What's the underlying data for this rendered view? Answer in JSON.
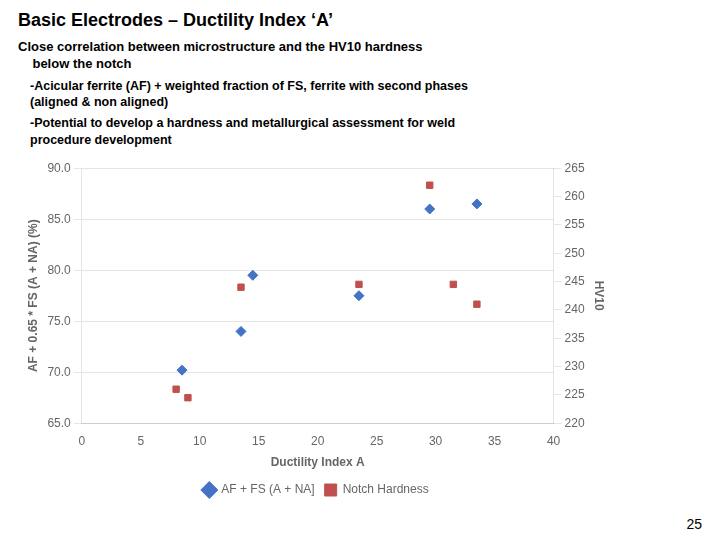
{
  "chart_data": {
    "type": "scatter",
    "title": "Basic Electrodes – Ductility Index ‘A’",
    "subtitle": [
      "Close correlation between microstructure and the HV10 hardness",
      "    below the notch"
    ],
    "annotations": [
      "-Acicular ferrite (AF) + weighted fraction of FS, ferrite with second phases\n(aligned & non aligned)",
      "-Potential to develop a hardness and metallurgical assessment for weld\nprocedure development",
      "25"
    ],
    "xlabel": "Ductility Index A",
    "ylabel": "AF + 0.65 * FS (A + NA) (%)",
    "y2label": "HV10",
    "xlim": [
      0,
      40
    ],
    "xticks": [
      0,
      5,
      10,
      15,
      20,
      25,
      30,
      35,
      40
    ],
    "ylim": [
      65.0,
      90.0
    ],
    "yticks": [
      {
        "value": 65.0,
        "label": "65.0"
      },
      {
        "value": 70.0,
        "label": "70.0"
      },
      {
        "value": 75.0,
        "label": "75.0"
      },
      {
        "value": 80.0,
        "label": "80.0"
      },
      {
        "value": 85.0,
        "label": "85.0"
      },
      {
        "value": 90.0,
        "label": "90.0"
      }
    ],
    "y2lim": [
      220,
      265
    ],
    "y2ticks": [
      220,
      225,
      230,
      235,
      240,
      245,
      250,
      255,
      260,
      265
    ],
    "grid": true,
    "legend": "bottom",
    "series": [
      {
        "name": "AF + FS (A + NA]",
        "color": "#4472c4",
        "marker": "diamond",
        "x": [
          8.5,
          13.5,
          14.5,
          23.5,
          29.5,
          33.5
        ],
        "values": [
          70.2,
          74.0,
          79.5,
          77.5,
          86.0,
          86.5
        ]
      },
      {
        "name": "Notch Hardness",
        "color": "#c0504d",
        "marker": "square",
        "axis": "y2",
        "x": [
          8.0,
          9.0,
          13.5,
          23.5,
          29.5,
          31.5,
          33.5
        ],
        "values": [
          226.0,
          224.5,
          244.0,
          244.5,
          262.0,
          244.5,
          241.0
        ]
      }
    ]
  }
}
